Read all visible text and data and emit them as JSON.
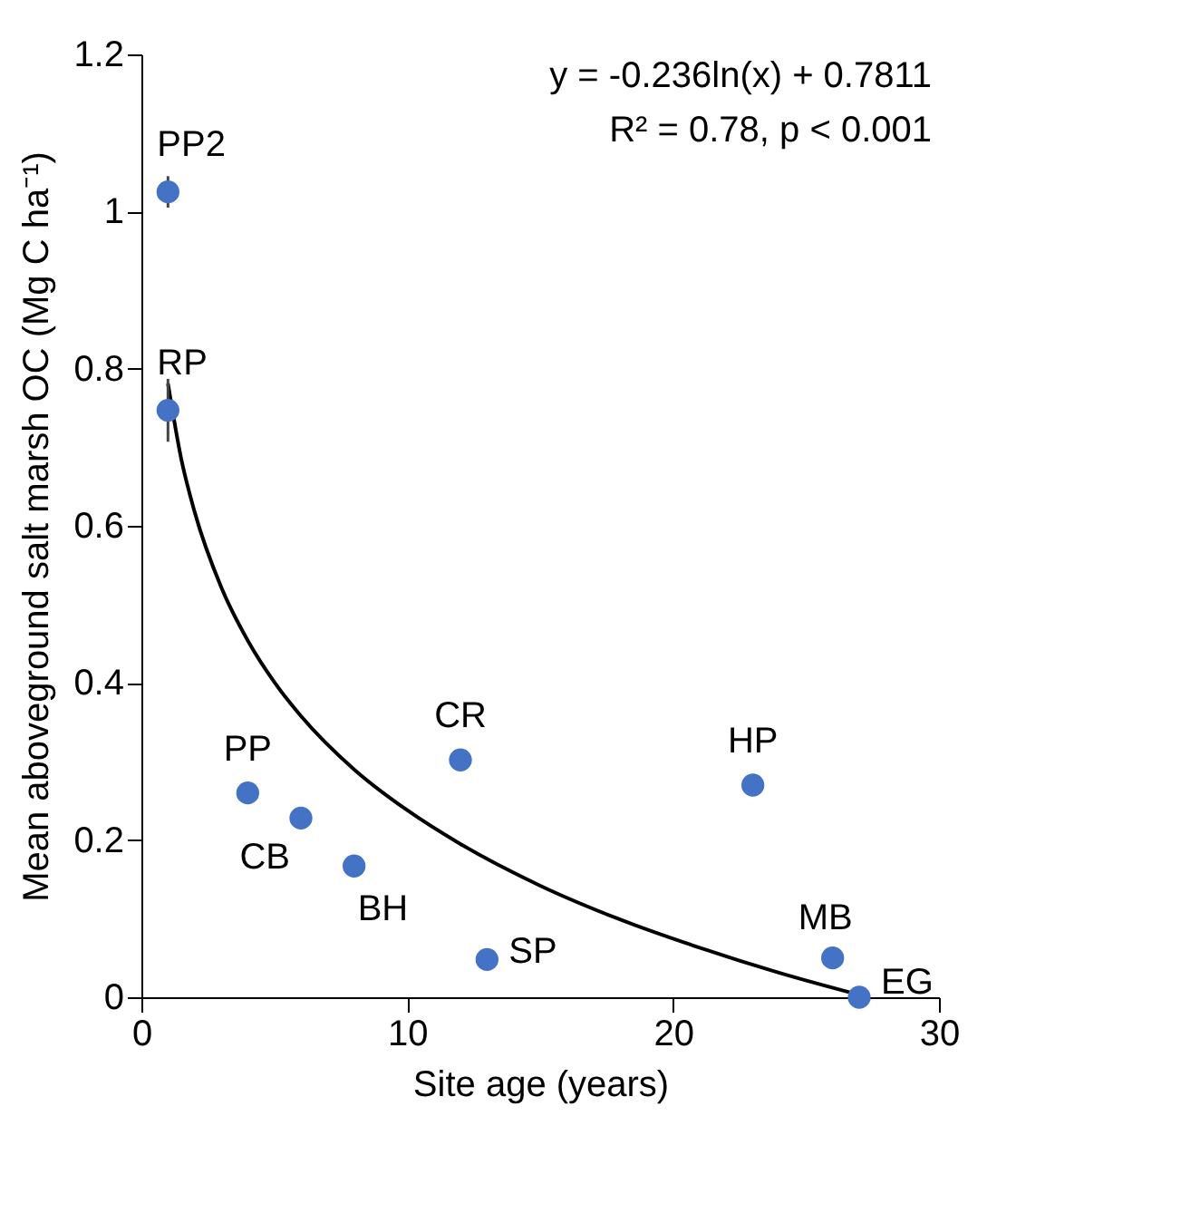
{
  "chart_data": {
    "type": "scatter",
    "xlabel": "Site age (years)",
    "ylabel": "Mean aboveground  salt marsh OC (Mg C ha⁻¹)",
    "xlim": [
      0,
      30
    ],
    "xticks": [
      0,
      10,
      20,
      30
    ],
    "ylim": [
      0,
      1.2
    ],
    "yticks": [
      0,
      0.2,
      0.4,
      0.6,
      0.8,
      1,
      1.2
    ],
    "grid": false,
    "series": [
      {
        "color": "#4472c4",
        "marker": "circle",
        "x": [
          1,
          1,
          4,
          6,
          8,
          12,
          13,
          23,
          26,
          27
        ],
        "values": [
          1.025,
          0.747,
          0.26,
          0.228,
          0.167,
          0.302,
          0.048,
          0.27,
          0.05,
          0.0
        ],
        "errors": [
          0.02,
          0.04,
          null,
          null,
          null,
          null,
          null,
          null,
          null,
          null
        ]
      },
      {
        "type": "line",
        "color": "#000000",
        "line_style": "solid",
        "x": [
          1,
          1.5,
          2,
          3,
          4,
          5,
          6,
          8,
          10,
          12,
          15,
          18,
          21,
          24,
          27
        ],
        "values": [
          0.781,
          0.685,
          0.618,
          0.522,
          0.454,
          0.401,
          0.358,
          0.29,
          0.238,
          0.195,
          0.142,
          0.099,
          0.063,
          0.031,
          0.003
        ]
      }
    ],
    "annotations": [
      "y = -0.236ln(x) + 0.7811",
      "R² = 0.78, p < 0.001",
      {
        "text": "PP2",
        "x": 1,
        "y": 1.025
      },
      {
        "text": "RP",
        "x": 1,
        "y": 0.747
      },
      {
        "text": "PP",
        "x": 4,
        "y": 0.26
      },
      {
        "text": "CB",
        "x": 6,
        "y": 0.228
      },
      {
        "text": "BH",
        "x": 8,
        "y": 0.167
      },
      {
        "text": "CR",
        "x": 12,
        "y": 0.302
      },
      {
        "text": "SP",
        "x": 13,
        "y": 0.048
      },
      {
        "text": "HP",
        "x": 23,
        "y": 0.27
      },
      {
        "text": "MB",
        "x": 26,
        "y": 0.05
      },
      {
        "text": "EG",
        "x": 27,
        "y": 0.0
      }
    ]
  }
}
